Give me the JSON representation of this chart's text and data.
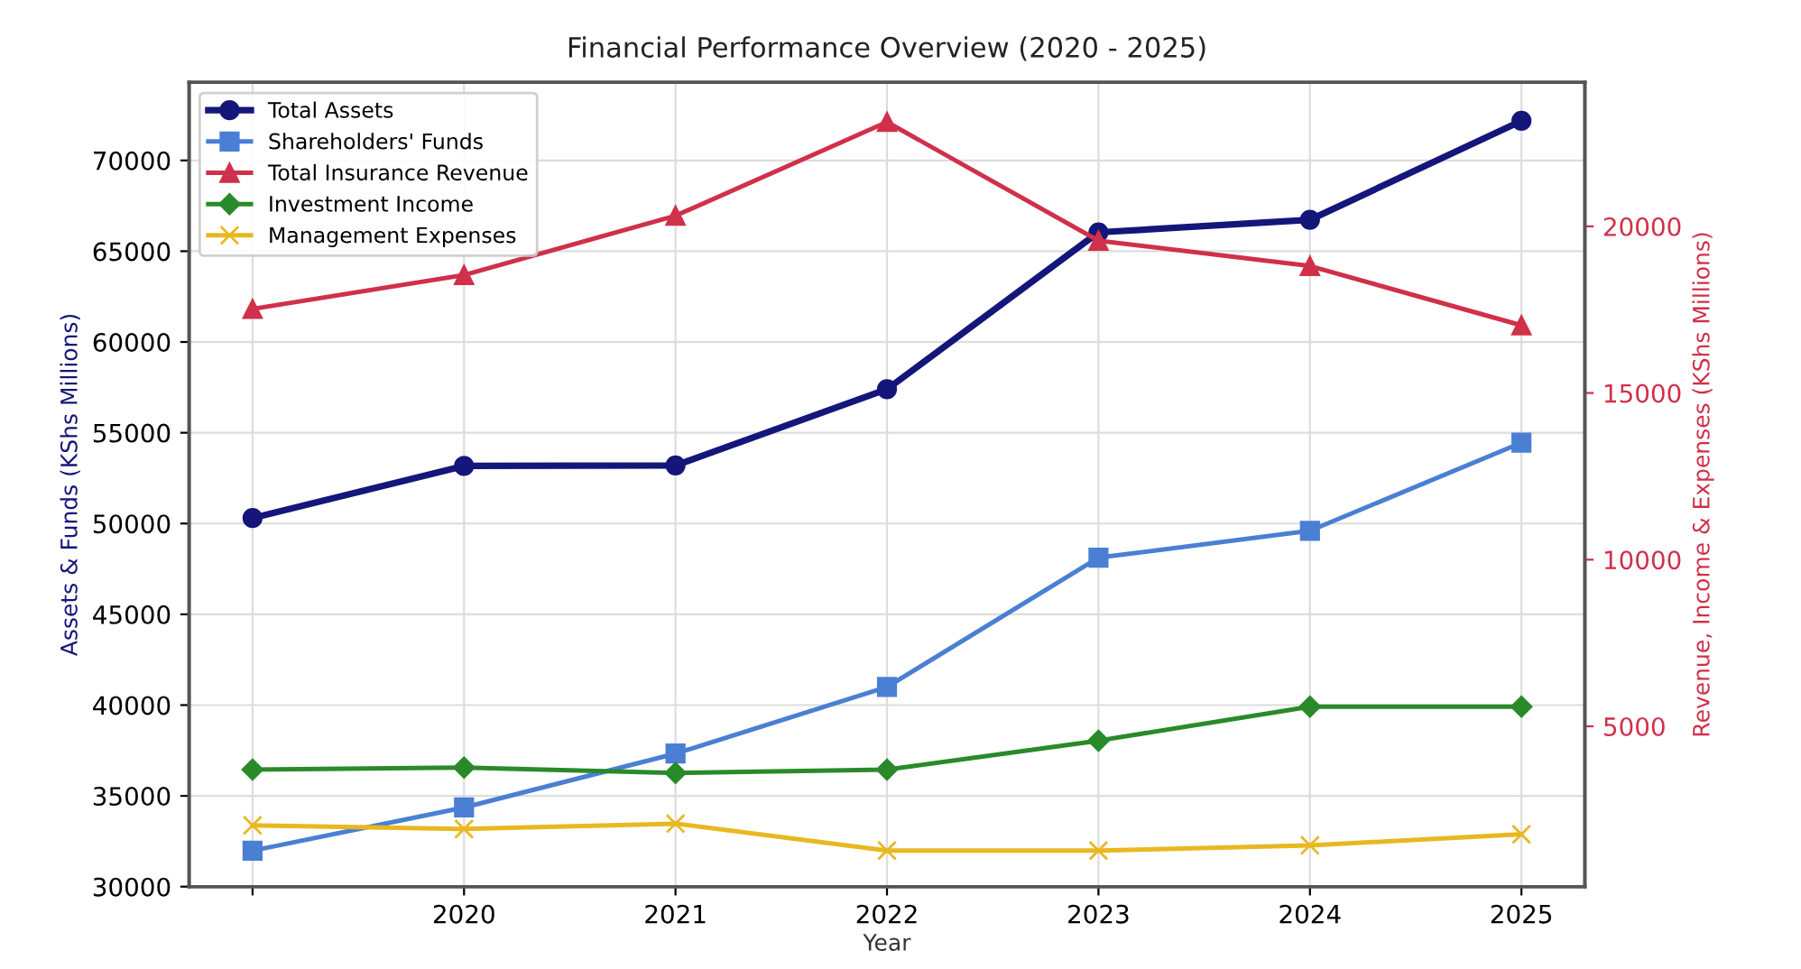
{
  "chart_data": {
    "type": "line",
    "title": "Financial Performance Overview (2020 - 2025)",
    "xlabel": "Year",
    "ylabel": "Assets & Funds (KShs Millions)",
    "y2label": "Revenue, Income & Expenses (KShs Millions)",
    "categories": [
      null,
      "2020",
      "2021",
      "2022",
      "2023",
      "2024",
      "2025"
    ],
    "series": [
      {
        "name": "Total Assets",
        "color": "#14167a",
        "marker": "circle",
        "values": [
          50300,
          53170,
          53200,
          57400,
          66040,
          66730,
          72180
        ]
      },
      {
        "name": "Shareholders' Funds",
        "color": "#4a7fd4",
        "marker": "square",
        "values": [
          31980,
          34360,
          37330,
          41000,
          48120,
          49600,
          54450
        ]
      },
      {
        "name": "Total Insurance Revenue",
        "color": "#d0304a",
        "marker": "triangle",
        "axis": "y2",
        "values": [
          17520,
          18540,
          20320,
          23130,
          19570,
          18810,
          17030
        ]
      },
      {
        "name": "Investment Income",
        "color": "#2a8a2a",
        "marker": "diamond",
        "axis": "y2",
        "values": [
          3700,
          3760,
          3600,
          3700,
          4570,
          5590,
          5590
        ]
      },
      {
        "name": "Management Expenses",
        "color": "#e8b820",
        "marker": "cross",
        "axis": "y2",
        "values": [
          2030,
          1920,
          2080,
          1270,
          1270,
          1430,
          1760
        ]
      }
    ],
    "ylim": [
      30000,
      74300
    ],
    "yticks": [
      30000,
      35000,
      40000,
      45000,
      50000,
      55000,
      60000,
      65000,
      70000
    ],
    "y2lim": [
      190,
      24320
    ],
    "y2ticks": [
      5000,
      10000,
      15000,
      20000
    ],
    "grid": true,
    "legend": "top left",
    "line_style": "solid"
  }
}
